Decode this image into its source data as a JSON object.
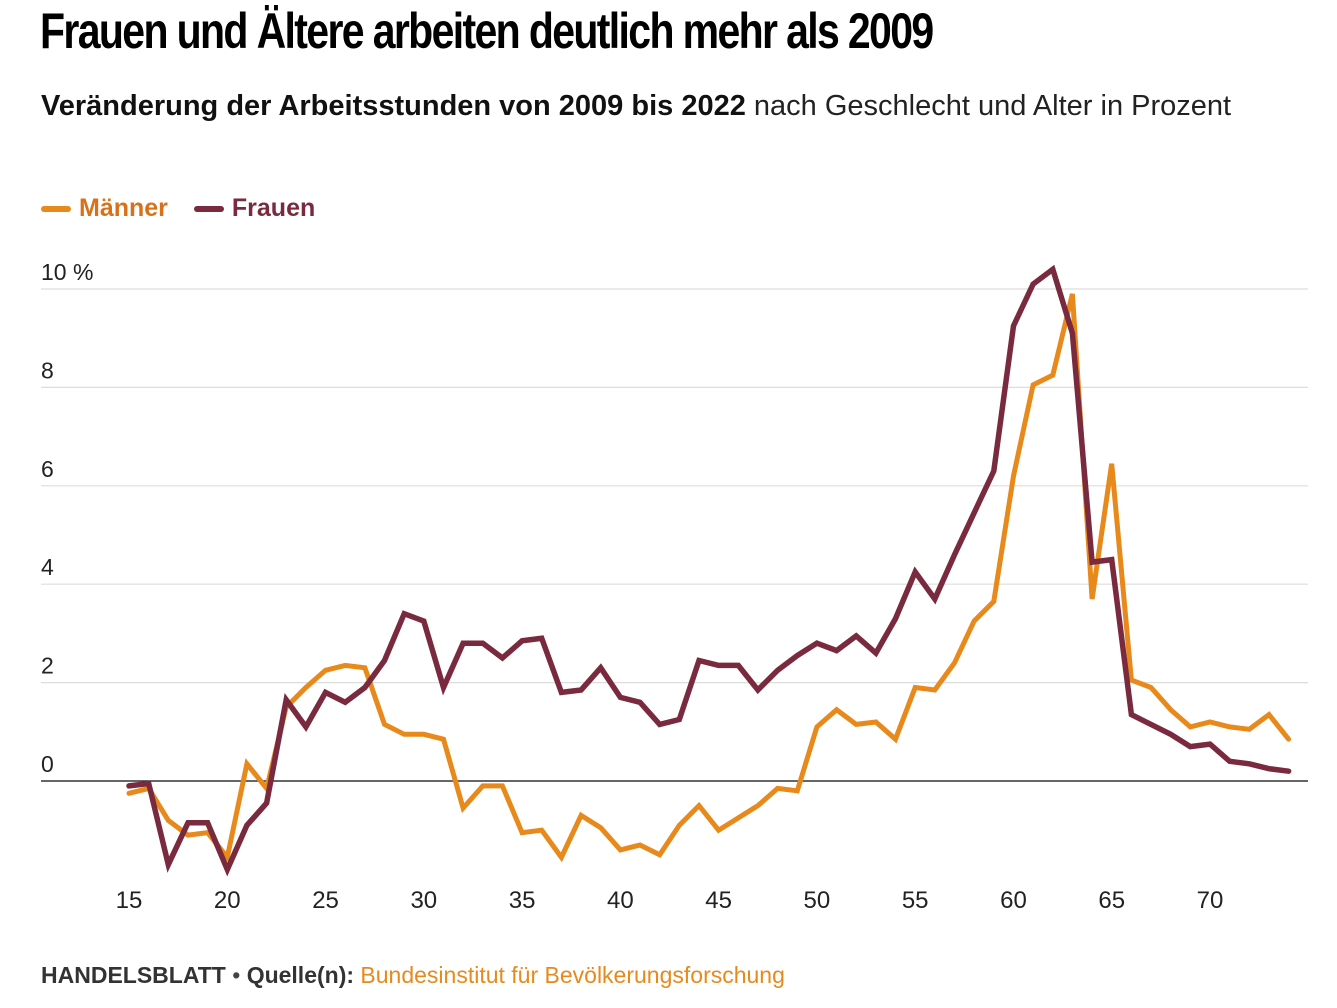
{
  "title": "Frauen und Ältere arbeiten deutlich mehr als 2009",
  "subtitle_bold": "Veränderung der Arbeitsstunden von 2009 bis 2022",
  "subtitle_rest": " nach Geschlecht und Alter in Prozent",
  "footer": {
    "brand": "HANDELSBLATT",
    "separator": " • ",
    "source_label": "Quelle(n):",
    "source": " Bundesinstitut für Bevölkerungsforschung"
  },
  "colors": {
    "maenner": "#e8891c",
    "frauen": "#7a2a3e",
    "maenner_legend_text": "#d9711a",
    "frauen_legend_text": "#7a2a3e"
  },
  "chart_data": {
    "type": "line",
    "xlim": [
      15,
      74
    ],
    "ylim": [
      -2,
      10
    ],
    "y_ticks": [
      {
        "value": 10,
        "label": "10 %"
      },
      {
        "value": 8,
        "label": "8"
      },
      {
        "value": 6,
        "label": "6"
      },
      {
        "value": 4,
        "label": "4"
      },
      {
        "value": 2,
        "label": "2"
      },
      {
        "value": 0,
        "label": "0"
      }
    ],
    "x_ticks": [
      15,
      20,
      25,
      30,
      35,
      40,
      45,
      50,
      55,
      60,
      65,
      70
    ],
    "grid": true,
    "legend_position": "top-left",
    "x": [
      15,
      16,
      17,
      18,
      19,
      20,
      21,
      22,
      23,
      24,
      25,
      26,
      27,
      28,
      29,
      30,
      31,
      32,
      33,
      34,
      35,
      36,
      37,
      38,
      39,
      40,
      41,
      42,
      43,
      44,
      45,
      46,
      47,
      48,
      49,
      50,
      51,
      52,
      53,
      54,
      55,
      56,
      57,
      58,
      59,
      60,
      61,
      62,
      63,
      64,
      65,
      66,
      67,
      68,
      69,
      70,
      71,
      72,
      73,
      74
    ],
    "series": [
      {
        "name": "Männer",
        "color": "#e8891c",
        "values": [
          -0.25,
          -0.15,
          -0.8,
          -1.1,
          -1.05,
          -1.55,
          0.35,
          -0.15,
          1.5,
          1.9,
          2.25,
          2.35,
          2.3,
          1.15,
          0.95,
          0.95,
          0.85,
          -0.55,
          -0.1,
          -0.1,
          -1.05,
          -1.0,
          -1.55,
          -0.7,
          -0.95,
          -1.4,
          -1.3,
          -1.5,
          -0.9,
          -0.5,
          -1.0,
          -0.75,
          -0.5,
          -0.15,
          -0.2,
          1.1,
          1.45,
          1.15,
          1.2,
          0.85,
          1.9,
          1.85,
          2.4,
          3.25,
          3.65,
          6.2,
          8.05,
          8.25,
          9.9,
          3.7,
          6.45,
          2.05,
          1.9,
          1.45,
          1.1,
          1.2,
          1.1,
          1.05,
          1.35,
          0.85
        ]
      },
      {
        "name": "Frauen",
        "color": "#7a2a3e",
        "values": [
          -0.1,
          -0.05,
          -1.7,
          -0.85,
          -0.85,
          -1.8,
          -0.9,
          -0.45,
          1.65,
          1.1,
          1.8,
          1.6,
          1.9,
          2.45,
          3.4,
          3.25,
          1.9,
          2.8,
          2.8,
          2.5,
          2.85,
          2.9,
          1.8,
          1.85,
          2.3,
          1.7,
          1.6,
          1.15,
          1.25,
          2.45,
          2.35,
          2.35,
          1.85,
          2.25,
          2.55,
          2.8,
          2.65,
          2.95,
          2.6,
          3.3,
          4.25,
          3.7,
          4.6,
          5.45,
          6.3,
          9.25,
          10.1,
          10.4,
          9.1,
          4.45,
          4.5,
          1.35,
          1.15,
          0.95,
          0.7,
          0.75,
          0.4,
          0.35,
          0.25,
          0.2
        ]
      }
    ]
  }
}
